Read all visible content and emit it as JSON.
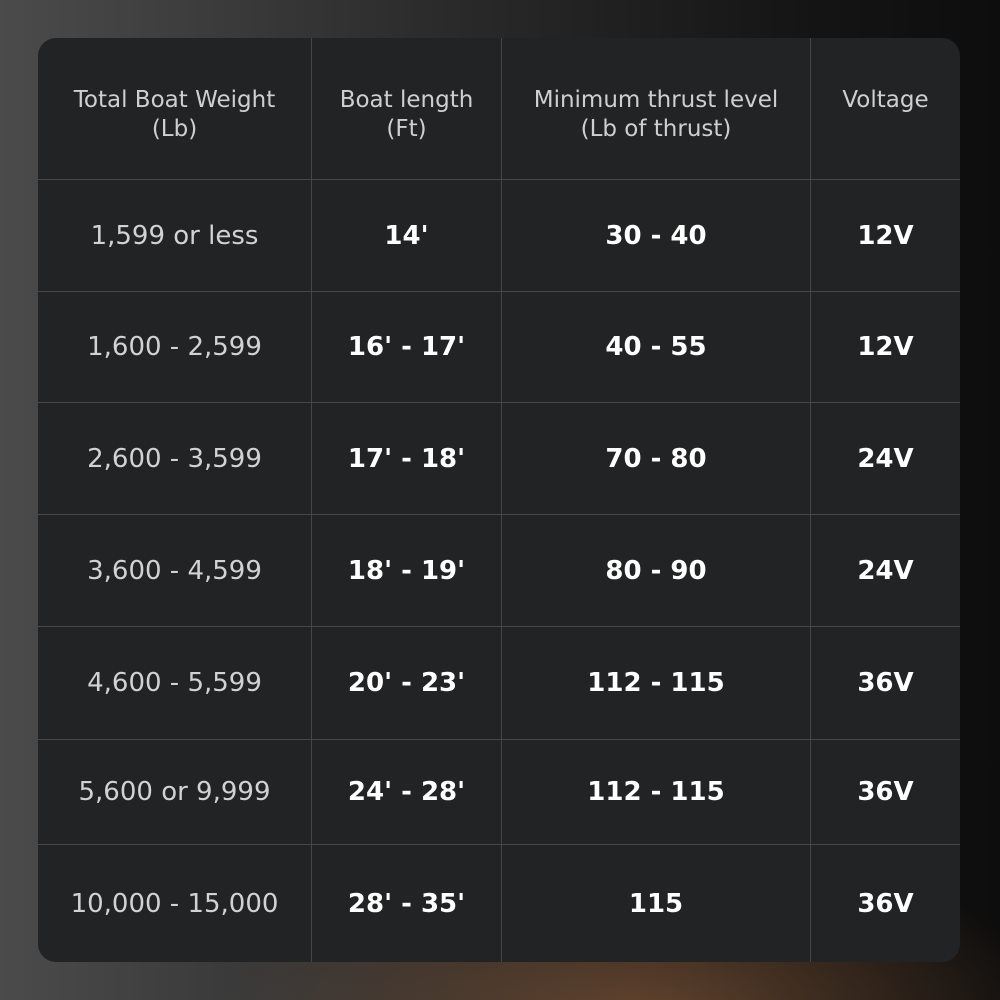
{
  "table": {
    "header": [
      [
        "Total Boat Weight",
        "(Lb)"
      ],
      [
        "Boat length",
        "(Ft)"
      ],
      [
        "Minimum thrust level",
        "(Lb of thrust)"
      ],
      [
        "Voltage"
      ]
    ],
    "rows": [
      [
        "1,599 or less",
        "14'",
        "30 - 40",
        "12V"
      ],
      [
        "1,600 - 2,599",
        "16' - 17'",
        "40 - 55",
        "12V"
      ],
      [
        "2,600 - 3,599",
        "17' - 18'",
        "70 - 80",
        "24V"
      ],
      [
        "3,600 - 4,599",
        "18' - 19'",
        "80 - 90",
        "24V"
      ],
      [
        "4,600 - 5,599",
        "20' - 23'",
        "112 - 115",
        "36V"
      ],
      [
        "5,600 or 9,999",
        "24' - 28'",
        "112 - 115",
        "36V"
      ],
      [
        "10,000 - 15,000",
        "28' - 35'",
        "115",
        "36V"
      ]
    ]
  }
}
